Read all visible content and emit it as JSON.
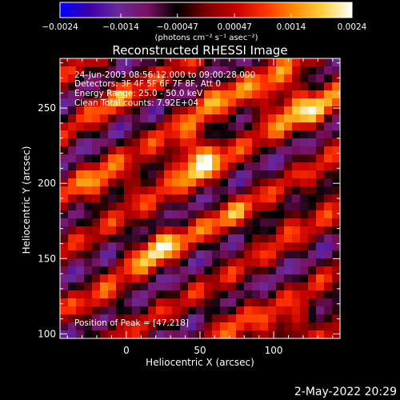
{
  "colorbar": {
    "tick_labels": [
      "−0.0024",
      "−0.0014",
      "−0.00047",
      "0.00047",
      "0.0014",
      "0.0024"
    ],
    "tick_values": [
      -0.0024,
      -0.0014,
      -0.00047,
      0.00047,
      0.0014,
      0.0024
    ],
    "range": [
      -0.0024,
      0.0024
    ],
    "unit_label": "(photons cm⁻² s⁻¹ asec⁻²)",
    "colors": [
      "#0000ff",
      "#3c00a8",
      "#6a2a9a",
      "#7a1060",
      "#000000",
      "#7a0000",
      "#c40000",
      "#ff3000",
      "#ff8a00",
      "#ffd040",
      "#ffffff"
    ]
  },
  "chart_data": {
    "type": "heatmap",
    "title": "Reconstructed RHESSI Image",
    "xlabel": "Heliocentric X (arcsec)",
    "ylabel": "Heliocentric Y (arcsec)",
    "xlim": [
      -45,
      145
    ],
    "ylim": [
      97,
      283
    ],
    "x_ticks": [
      0,
      50,
      100
    ],
    "y_ticks": [
      100,
      150,
      200,
      250
    ],
    "grid": false,
    "annotations": {
      "time": "24-Jun-2003 08:56:12.000 to 09:00:28.000",
      "detectors": "Detectors: 3F 4F 5F 6F 7F 8F, Att 0",
      "energy": "Energy Range: 25.0 - 50.0 keV",
      "clean": "Clean     Total counts: 7.92E+04",
      "peak": "Position of Peak = [47,218]"
    },
    "peak": {
      "x": 47,
      "y": 218
    }
  },
  "timestamp": "2-May-2022 20:29"
}
